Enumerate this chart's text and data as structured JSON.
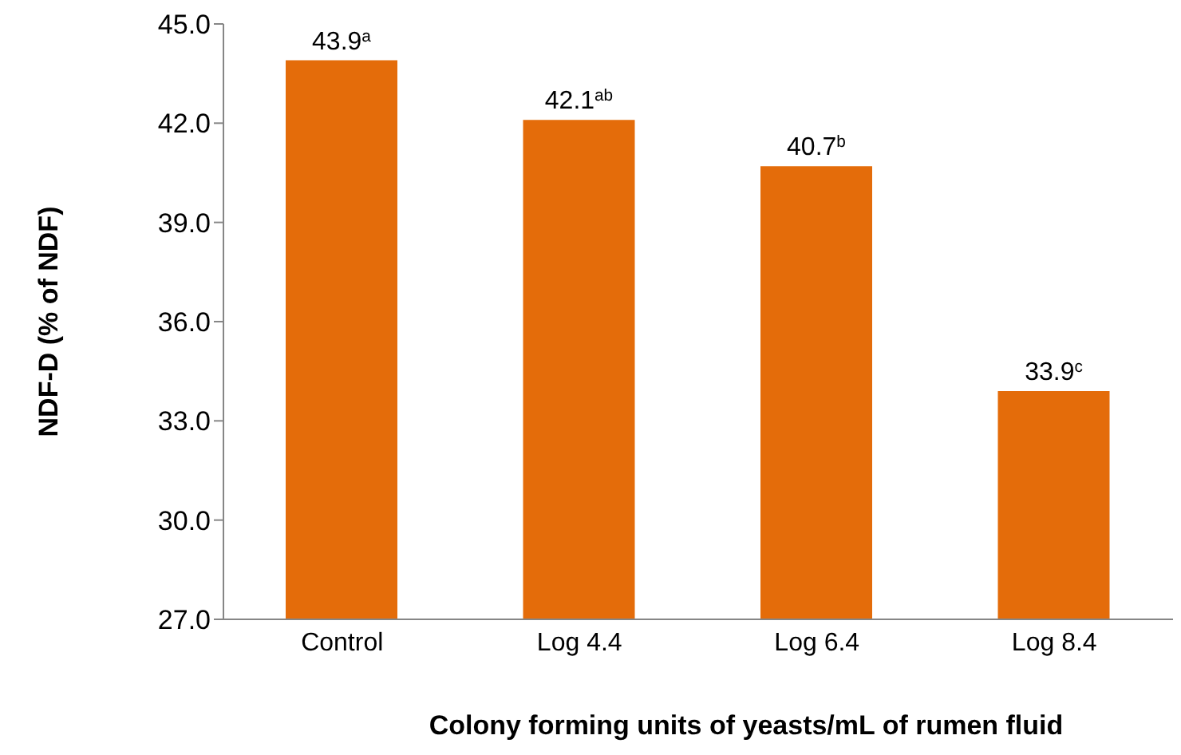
{
  "chart_data": {
    "type": "bar",
    "xlabel": "Colony forming units of yeasts/mL of rumen fluid",
    "ylabel": "NDF-D (% of NDF)",
    "categories": [
      "Control",
      "Log 4.4",
      "Log 6.4",
      "Log 8.4"
    ],
    "values": [
      43.9,
      42.1,
      40.7,
      33.9
    ],
    "value_labels": [
      "43.9$^{a}$",
      "42.1$^{ab}$",
      "40.7$^{b}$",
      "33.9$^{c}$"
    ],
    "color": "#e46c0a",
    "ylim": [
      27,
      45
    ],
    "yticks": [
      {
        "value": 27,
        "label": "27.0"
      },
      {
        "value": 30,
        "label": "30.0"
      },
      {
        "value": 33,
        "label": "33.0"
      },
      {
        "value": 36,
        "label": "36.0"
      },
      {
        "value": 39,
        "label": "39.0"
      },
      {
        "value": 42,
        "label": "42.0"
      },
      {
        "value": 45,
        "label": "45.0"
      }
    ],
    "grid": false,
    "legend": false
  }
}
